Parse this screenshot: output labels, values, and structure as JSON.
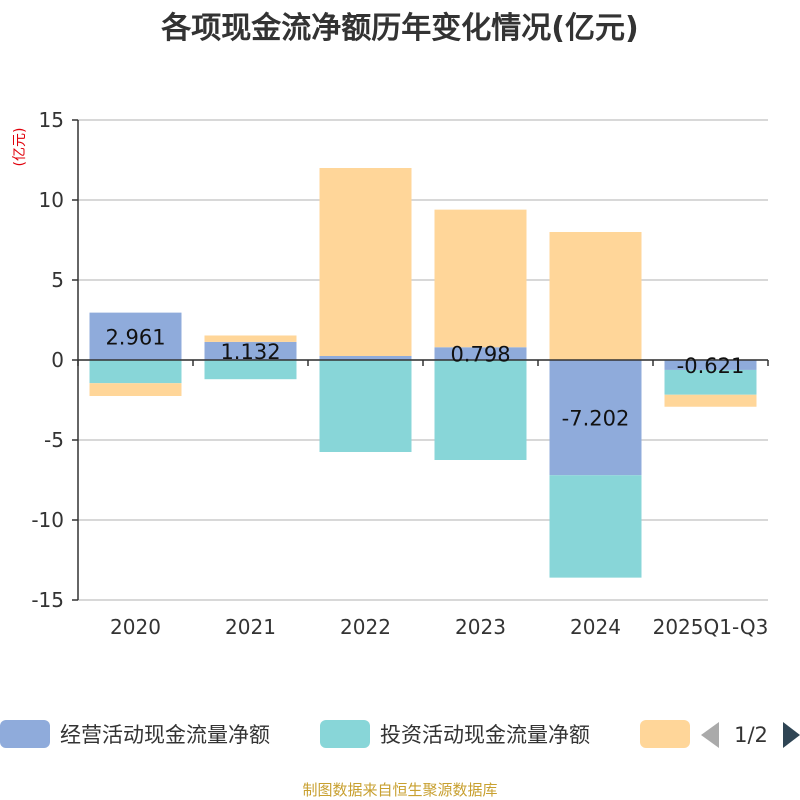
{
  "chart_data": {
    "type": "bar",
    "stacked": true,
    "title": "各项现金流净额历年变化情况(亿元)",
    "unit_label": "(亿元)",
    "categories": [
      "2020",
      "2021",
      "2022",
      "2023",
      "2024",
      "2025Q1-Q3"
    ],
    "ylim": [
      -15,
      15
    ],
    "yticks": [
      15,
      10,
      5,
      0,
      -5,
      -10,
      -15
    ],
    "grid": true,
    "series": [
      {
        "name": "经营活动现金流量净额",
        "color": "#8fabdb",
        "values": [
          2.961,
          1.132,
          0.25,
          0.798,
          -7.202,
          -0.621
        ],
        "labels": [
          "2.961",
          "1.132",
          "",
          "0.798",
          "-7.202",
          "-0.621"
        ]
      },
      {
        "name": "投资活动现金流量净额",
        "color": "#88d6d8",
        "values": [
          -1.45,
          -1.2,
          -5.75,
          -6.25,
          -6.4,
          -1.55
        ],
        "labels": [
          "",
          "",
          "",
          "",
          "",
          ""
        ]
      },
      {
        "name": "",
        "color": "#ffd699",
        "values": [
          -0.8,
          0.4,
          11.75,
          8.6,
          8.0,
          -0.75
        ],
        "labels": [
          "",
          "",
          "",
          "",
          "",
          ""
        ]
      }
    ],
    "legend_position": "bottom",
    "legend_page": "1/2"
  },
  "footer": "制图数据来自恒生聚源数据库"
}
